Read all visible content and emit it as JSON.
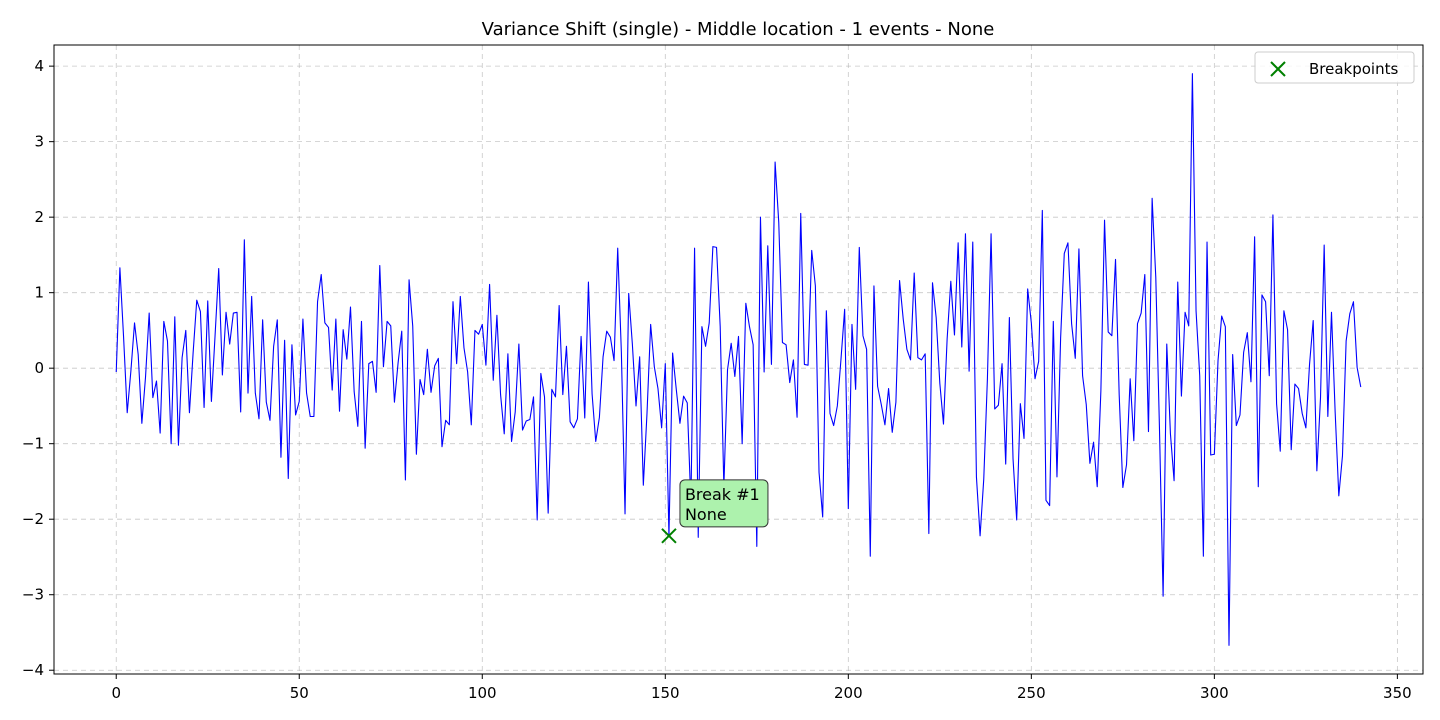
{
  "chart_data": {
    "type": "line",
    "title": "Variance Shift (single) - Middle location - 1 events - None",
    "xlabel": "",
    "ylabel": "",
    "xlim": [
      -17,
      357
    ],
    "ylim": [
      -4.05,
      4.28
    ],
    "xticks": [
      0,
      50,
      100,
      150,
      200,
      250,
      300,
      350
    ],
    "yticks": [
      -4,
      -3,
      -2,
      -1,
      0,
      1,
      2,
      3,
      4
    ],
    "grid": true,
    "legend": {
      "placement": "top-right",
      "entries": [
        "Breakpoints"
      ]
    },
    "colors": {
      "series": "#0000ff",
      "breakpoint": "#008000",
      "annotation_bg": "#adf2ad"
    },
    "series": [
      {
        "values": [
          -0.05,
          1.33,
          0.42,
          -0.59,
          -0.04,
          0.6,
          0.18,
          -0.73,
          -0.12,
          0.73,
          -0.39,
          -0.17,
          -0.86,
          0.62,
          0.36,
          -1.0,
          0.68,
          -1.02,
          0.14,
          0.5,
          -0.59,
          0.2,
          0.9,
          0.75,
          -0.52,
          0.89,
          -0.44,
          0.43,
          1.32,
          -0.09,
          0.74,
          0.32,
          0.73,
          0.74,
          -0.58,
          1.7,
          -0.33,
          0.95,
          -0.33,
          -0.67,
          0.64,
          -0.45,
          -0.69,
          0.29,
          0.64,
          -1.18,
          0.37,
          -1.46,
          0.31,
          -0.62,
          -0.44,
          0.65,
          -0.33,
          -0.64,
          -0.64,
          0.88,
          1.24,
          0.6,
          0.54,
          -0.29,
          0.65,
          -0.57,
          0.51,
          0.12,
          0.81,
          -0.31,
          -0.77,
          0.62,
          -1.06,
          0.06,
          0.09,
          -0.32,
          1.36,
          0.02,
          0.62,
          0.56,
          -0.45,
          0.07,
          0.49,
          -1.48,
          1.17,
          0.56,
          -1.14,
          -0.15,
          -0.35,
          0.25,
          -0.32,
          0.03,
          0.13,
          -1.04,
          -0.69,
          -0.75,
          0.88,
          0.06,
          0.95,
          0.27,
          -0.05,
          -0.75,
          0.5,
          0.45,
          0.58,
          0.04,
          1.11,
          -0.16,
          0.7,
          -0.35,
          -0.87,
          0.19,
          -0.97,
          -0.58,
          0.32,
          -0.82,
          -0.7,
          -0.68,
          -0.38,
          -2.01,
          -0.07,
          -0.38,
          -1.92,
          -0.28,
          -0.38,
          0.83,
          -0.35,
          0.29,
          -0.71,
          -0.79,
          -0.67,
          0.42,
          -0.66,
          1.14,
          -0.34,
          -0.97,
          -0.65,
          0.15,
          0.49,
          0.41,
          0.1,
          1.59,
          0.21,
          -1.93,
          0.99,
          0.32,
          -0.5,
          0.15,
          -1.55,
          -0.6,
          0.58,
          0.02,
          -0.27,
          -0.79,
          0.06,
          -2.22,
          0.2,
          -0.28,
          -0.73,
          -0.37,
          -0.46,
          -1.8,
          1.59,
          -2.24,
          0.55,
          0.29,
          0.6,
          1.61,
          1.6,
          0.55,
          -1.57,
          -0.02,
          0.33,
          -0.11,
          0.42,
          -1.0,
          0.86,
          0.55,
          0.31,
          -2.36,
          2.0,
          -0.05,
          1.62,
          0.05,
          2.73,
          1.93,
          0.34,
          0.31,
          -0.19,
          0.11,
          -0.65,
          2.05,
          0.05,
          0.04,
          1.56,
          1.09,
          -1.38,
          -1.97,
          0.76,
          -0.6,
          -0.76,
          -0.5,
          0.12,
          0.78,
          -1.86,
          0.58,
          -0.28,
          1.6,
          0.43,
          0.25,
          -2.49,
          1.09,
          -0.24,
          -0.48,
          -0.75,
          -0.27,
          -0.85,
          -0.45,
          1.16,
          0.65,
          0.25,
          0.11,
          1.26,
          0.14,
          0.11,
          0.19,
          -2.19,
          1.13,
          0.67,
          -0.2,
          -0.74,
          0.39,
          1.15,
          0.44,
          1.66,
          0.28,
          1.78,
          -0.04,
          1.67,
          -1.44,
          -2.22,
          -1.47,
          -0.14,
          1.78,
          -0.54,
          -0.49,
          0.06,
          -1.27,
          0.67,
          -1.2,
          -2.01,
          -0.47,
          -0.93,
          1.05,
          0.6,
          -0.14,
          0.09,
          2.09,
          -1.75,
          -1.82,
          0.62,
          -1.44,
          0.4,
          1.52,
          1.66,
          0.59,
          0.13,
          1.58,
          -0.1,
          -0.48,
          -1.26,
          -0.98,
          -1.57,
          -0.3,
          1.96,
          0.48,
          0.43,
          1.44,
          -0.35,
          -1.58,
          -1.28,
          -0.14,
          -0.96,
          0.59,
          0.73,
          1.24,
          -0.84,
          2.25,
          1.2,
          -0.79,
          -3.02,
          0.32,
          -0.87,
          -1.49,
          1.14,
          -0.37,
          0.74,
          0.56,
          3.9,
          0.76,
          -0.1,
          -2.49,
          1.67,
          -1.15,
          -1.14,
          0.1,
          0.69,
          0.55,
          -3.67,
          0.18,
          -0.76,
          -0.62,
          0.21,
          0.47,
          -0.18,
          1.74,
          -1.57,
          0.97,
          0.88,
          -0.1,
          2.03,
          -0.47,
          -1.1,
          0.76,
          0.51,
          -1.08,
          -0.21,
          -0.27,
          -0.6,
          -0.79,
          0.05,
          0.63,
          -1.36,
          -0.39,
          1.63,
          -0.64,
          0.74,
          -0.58,
          -1.69,
          -1.16,
          0.36,
          0.72,
          0.88,
          0.01,
          -0.25
        ]
      }
    ],
    "breakpoints": [
      {
        "x": 151,
        "y": -2.22,
        "label_line1": "Break #1",
        "label_line2": "None"
      }
    ]
  }
}
